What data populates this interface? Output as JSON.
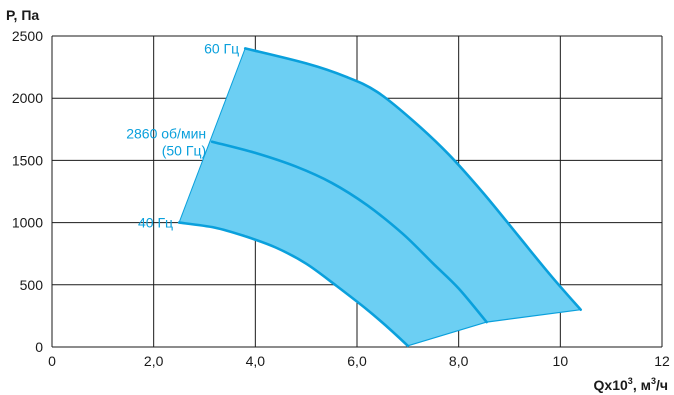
{
  "chart_data": {
    "type": "area",
    "ylabel": "P, Па",
    "xlabel_main": "Qx10",
    "xlabel_sup": "3",
    "xlabel_unit": ", м",
    "xlabel_unit_sup": "3",
    "xlabel_unit_end": "/ч",
    "xlim": [
      0,
      12
    ],
    "ylim": [
      0,
      2500
    ],
    "grid": true,
    "x_ticks": [
      {
        "value": 0,
        "label": "0"
      },
      {
        "value": 2,
        "label": "2,0"
      },
      {
        "value": 4,
        "label": "4,0"
      },
      {
        "value": 6,
        "label": "6,0"
      },
      {
        "value": 8,
        "label": "8,0"
      },
      {
        "value": 10,
        "label": "10"
      },
      {
        "value": 12,
        "label": "12"
      }
    ],
    "y_ticks": [
      {
        "value": 0,
        "label": "0"
      },
      {
        "value": 500,
        "label": "500"
      },
      {
        "value": 1000,
        "label": "1000"
      },
      {
        "value": 1500,
        "label": "1500"
      },
      {
        "value": 2000,
        "label": "2000"
      },
      {
        "value": 2500,
        "label": "2500"
      }
    ],
    "colors": {
      "fill": "#6ccff3",
      "curve": "#0aa0dc",
      "label": "#0aa0dc",
      "grid": "#1a1a1a"
    },
    "series": [
      {
        "name": "60 Гц",
        "x": [
          3.8,
          5.0,
          5.8,
          6.4,
          7.1,
          7.8,
          8.5,
          9.2,
          9.8,
          10.4
        ],
        "y": [
          2400,
          2280,
          2170,
          2050,
          1820,
          1550,
          1230,
          880,
          580,
          300
        ]
      },
      {
        "name": "2860 об/мин\n(50 Гц)",
        "x": [
          3.15,
          4.0,
          4.8,
          5.5,
          6.2,
          6.9,
          7.5,
          8.0,
          8.55
        ],
        "y": [
          1650,
          1560,
          1450,
          1320,
          1140,
          910,
          670,
          470,
          200
        ]
      },
      {
        "name": "40 Гц",
        "x": [
          2.5,
          3.2,
          3.8,
          4.4,
          5.0,
          5.6,
          6.2,
          6.6,
          7.0
        ],
        "y": [
          1000,
          960,
          890,
          800,
          670,
          490,
          300,
          160,
          10
        ]
      }
    ],
    "boundary": {
      "left": {
        "x": [
          2.5,
          3.8
        ],
        "y": [
          1000,
          2400
        ]
      },
      "bottom": {
        "x": [
          7.0,
          8.55,
          10.4
        ],
        "y": [
          10,
          200,
          300
        ]
      }
    },
    "labels": [
      {
        "series": 0,
        "lines": [
          "60 Гц"
        ]
      },
      {
        "series": 1,
        "lines": [
          "2860 об/мин",
          "(50 Гц)"
        ]
      },
      {
        "series": 2,
        "lines": [
          "40 Гц"
        ]
      }
    ]
  }
}
